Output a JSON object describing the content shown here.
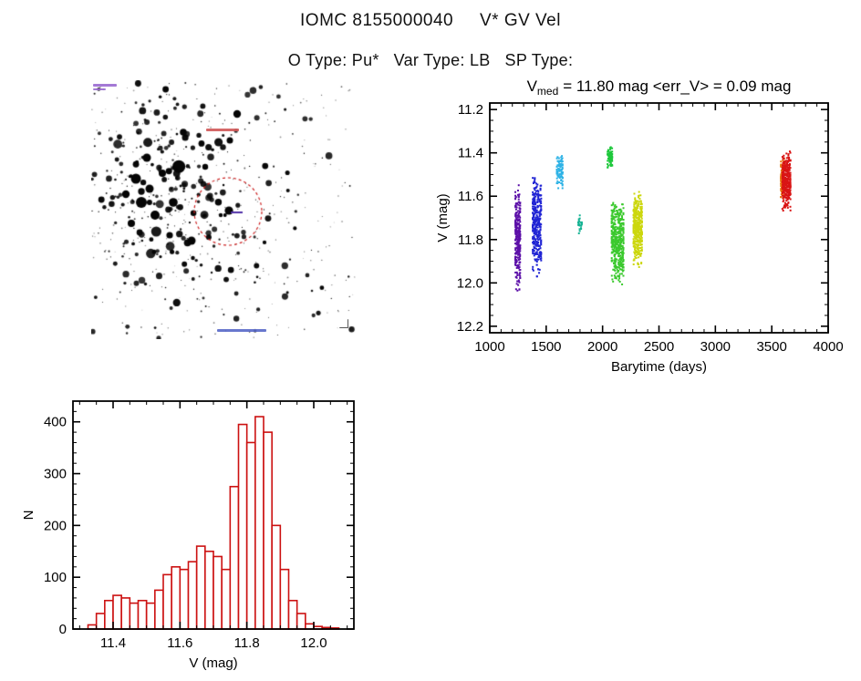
{
  "header": {
    "title": "IOMC 8155000040     V* GV Vel",
    "subtitle": "O Type: Pu*   Var Type: LB   SP Type:"
  },
  "finder": {
    "kind": "star-field finder chart",
    "circle_color": "#cc2020",
    "pointer_color": "#5030a8"
  },
  "chart_data": [
    {
      "type": "scatter",
      "title": {
        "lead": "V",
        "sub": "med",
        "rest": "= 11.80 mag  <err_V> = 0.09 mag"
      },
      "xlabel": "Barytime (days)",
      "ylabel": "V (mag)",
      "xlim": [
        1000,
        4000
      ],
      "ylim": [
        11.17,
        12.23
      ],
      "y_inverted": true,
      "xticks": [
        1000,
        1500,
        2000,
        2500,
        3000,
        3500,
        4000
      ],
      "xtick_labels": [
        "1000",
        "1500",
        "2000",
        "2500",
        "3000",
        "3500",
        "4000"
      ],
      "yticks": [
        11.2,
        11.4,
        11.6,
        11.8,
        12.0,
        12.2
      ],
      "ytick_labels": [
        "11.2",
        "11.4",
        "11.6",
        "11.8",
        "12.0",
        "12.2"
      ],
      "x_minor": 100,
      "y_minor": 0.05,
      "clusters": [
        {
          "name": "epoch-1-purple",
          "color": "#5c10a8",
          "x": [
            1224,
            1272
          ],
          "y": [
            11.54,
            12.05
          ],
          "n": 280
        },
        {
          "name": "epoch-2-blue",
          "color": "#2024d4",
          "x": [
            1378,
            1458
          ],
          "y": [
            11.49,
            11.98
          ],
          "n": 330
        },
        {
          "name": "epoch-3-cyan",
          "color": "#2fb3e6",
          "x": [
            1592,
            1648
          ],
          "y": [
            11.41,
            11.57
          ],
          "n": 90
        },
        {
          "name": "epoch-4-teal",
          "color": "#17b394",
          "x": [
            1782,
            1818
          ],
          "y": [
            11.67,
            11.79
          ],
          "n": 26
        },
        {
          "name": "epoch-5-green-upper",
          "color": "#1fc83c",
          "x": [
            2042,
            2088
          ],
          "y": [
            11.36,
            11.47
          ],
          "n": 70
        },
        {
          "name": "epoch-5-green-main",
          "color": "#3bc92e",
          "x": [
            2078,
            2188
          ],
          "y": [
            11.61,
            12.03
          ],
          "n": 420
        },
        {
          "name": "epoch-6-yellow",
          "color": "#ccd70e",
          "x": [
            2272,
            2352
          ],
          "y": [
            11.57,
            11.93
          ],
          "n": 400
        },
        {
          "name": "epoch-7-orange",
          "color": "#e87a14",
          "x": [
            3578,
            3614
          ],
          "y": [
            11.41,
            11.63
          ],
          "n": 90
        },
        {
          "name": "epoch-7-red",
          "color": "#d91515",
          "x": [
            3592,
            3668
          ],
          "y": [
            11.37,
            11.68
          ],
          "n": 310
        }
      ]
    },
    {
      "type": "histogram",
      "xlabel": "V (mag)",
      "ylabel": "N",
      "xlim": [
        11.28,
        12.12
      ],
      "ylim": [
        0,
        440
      ],
      "xticks": [
        11.4,
        11.6,
        11.8,
        12.0
      ],
      "xtick_labels": [
        "11.4",
        "11.6",
        "11.8",
        "12.0"
      ],
      "yticks": [
        0,
        100,
        200,
        300,
        400
      ],
      "ytick_labels": [
        "0",
        "100",
        "200",
        "300",
        "400"
      ],
      "x_minor": 0.05,
      "y_minor": 20,
      "bin_start": 11.325,
      "bin_width": 0.025,
      "counts": [
        8,
        30,
        55,
        65,
        60,
        50,
        55,
        50,
        75,
        105,
        120,
        115,
        130,
        160,
        150,
        140,
        115,
        275,
        395,
        360,
        410,
        380,
        200,
        115,
        55,
        30,
        10,
        5,
        3,
        2
      ],
      "bar_color": "#cc1111"
    }
  ]
}
